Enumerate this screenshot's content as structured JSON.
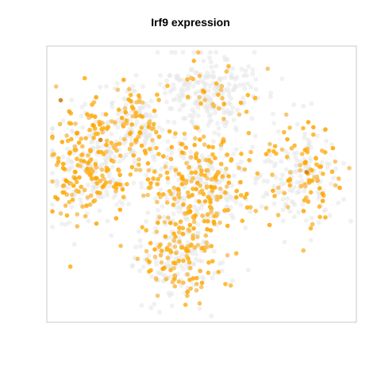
{
  "chart_data": {
    "type": "scatter",
    "title": "Irf9 expression",
    "xlabel": "",
    "ylabel": "",
    "axes_visible": false,
    "frame": true,
    "grid": false,
    "legend": "none",
    "colors": {
      "low": "#e6e6e6",
      "high": "#ffa500",
      "max": "#c8780a",
      "frame": "#c8c8c8"
    },
    "clusters": [
      {
        "name": "top-center",
        "center": [
          268,
          118
        ],
        "spread": [
          42,
          34
        ],
        "count": 260,
        "expressing_fraction": 0.12
      },
      {
        "name": "left",
        "center": [
          115,
          205
        ],
        "spread": [
          36,
          50
        ],
        "count": 340,
        "expressing_fraction": 0.45
      },
      {
        "name": "left-upper",
        "center": [
          170,
          160
        ],
        "spread": [
          30,
          38
        ],
        "count": 180,
        "expressing_fraction": 0.32
      },
      {
        "name": "center",
        "center": [
          250,
          230
        ],
        "spread": [
          48,
          42
        ],
        "count": 380,
        "expressing_fraction": 0.45
      },
      {
        "name": "right",
        "center": [
          380,
          225
        ],
        "spread": [
          32,
          42
        ],
        "count": 220,
        "expressing_fraction": 0.38
      },
      {
        "name": "bottom",
        "center": [
          225,
          325
        ],
        "spread": [
          36,
          40
        ],
        "count": 260,
        "expressing_fraction": 0.42
      }
    ]
  }
}
